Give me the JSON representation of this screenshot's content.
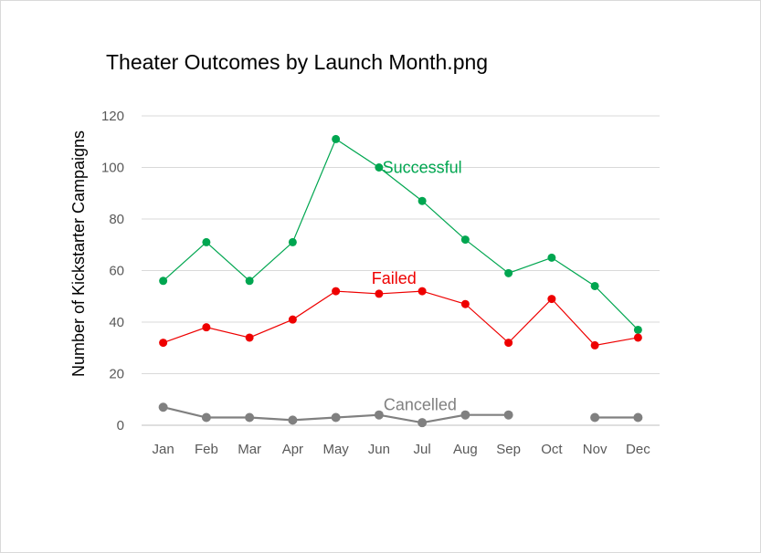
{
  "chart_data": {
    "type": "line",
    "title": "Theater Outcomes by Launch Month.png",
    "xlabel": "",
    "ylabel": "Number of Kickstarter Campaigns",
    "categories": [
      "Jan",
      "Feb",
      "Mar",
      "Apr",
      "May",
      "Jun",
      "Jul",
      "Aug",
      "Sep",
      "Oct",
      "Nov",
      "Dec"
    ],
    "ylim": [
      0,
      120
    ],
    "yticks": [
      0,
      20,
      40,
      60,
      80,
      100,
      120
    ],
    "grid": true,
    "legend": "inline labels",
    "series": [
      {
        "name": "Successful",
        "color": "#00a650",
        "values": [
          56,
          71,
          56,
          71,
          111,
          100,
          87,
          72,
          59,
          65,
          54,
          37
        ]
      },
      {
        "name": "Failed",
        "color": "#ee0000",
        "values": [
          32,
          38,
          34,
          41,
          52,
          51,
          52,
          47,
          32,
          49,
          31,
          34
        ]
      },
      {
        "name": "Cancelled",
        "color": "#808080",
        "values": [
          7,
          3,
          3,
          2,
          3,
          4,
          1,
          4,
          4,
          null,
          3,
          3
        ]
      }
    ]
  }
}
